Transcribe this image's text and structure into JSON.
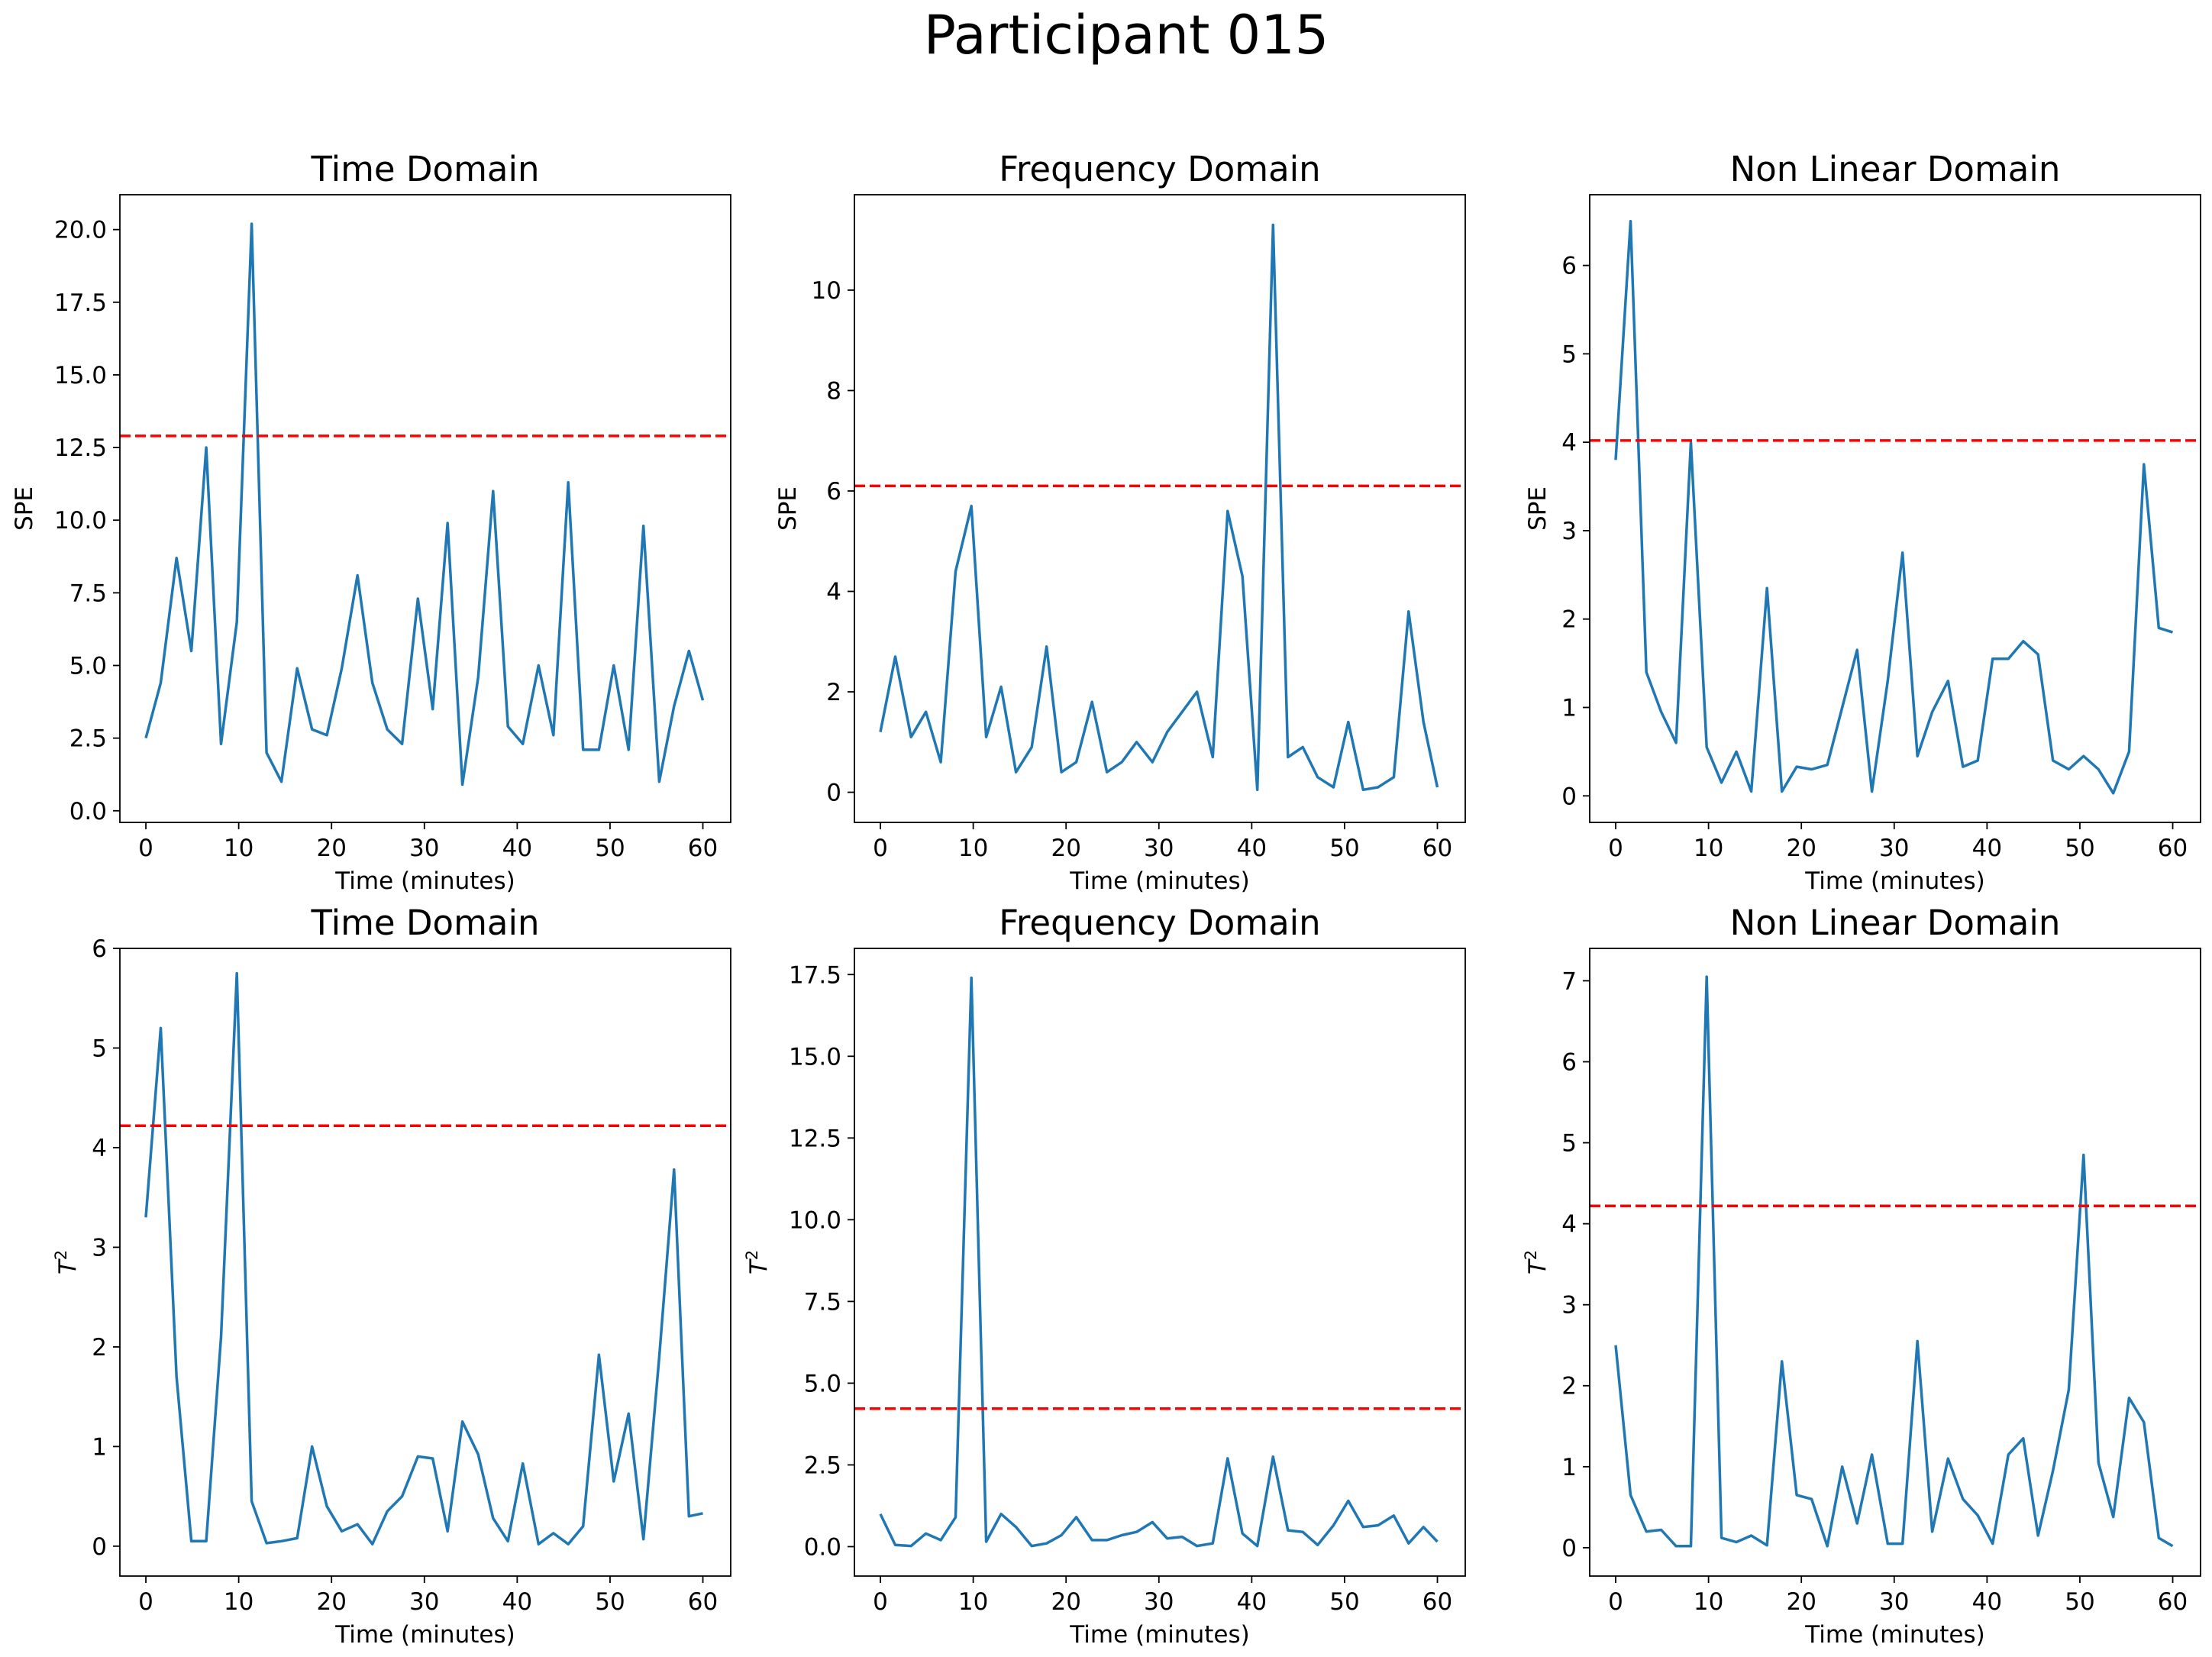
{
  "figure_title": "Participant 015",
  "colors": {
    "line": "#1f77b4",
    "threshold": "#ff0000",
    "axis": "#000000"
  },
  "chart_data": [
    {
      "type": "line",
      "title": "Time Domain",
      "xlabel": "Time (minutes)",
      "ylabel": "SPE",
      "xlim": [
        -2.8,
        63
      ],
      "ylim": [
        -0.4,
        21.2
      ],
      "xticks": [
        0,
        10,
        20,
        30,
        40,
        50,
        60
      ],
      "xtick_labels": [
        "0",
        "10",
        "20",
        "30",
        "40",
        "50",
        "60"
      ],
      "yticks": [
        0,
        2.5,
        5,
        7.5,
        10,
        12.5,
        15,
        17.5,
        20
      ],
      "ytick_labels": [
        "0.0",
        "2.5",
        "5.0",
        "7.5",
        "10.0",
        "12.5",
        "15.0",
        "17.5",
        "20.0"
      ],
      "threshold": 12.9,
      "x": [
        0,
        1.6,
        3.3,
        4.9,
        6.5,
        8.1,
        9.8,
        11.4,
        13,
        14.6,
        16.3,
        17.9,
        19.5,
        21.1,
        22.8,
        24.4,
        26,
        27.6,
        29.3,
        30.9,
        32.5,
        34.1,
        35.8,
        37.4,
        39,
        40.6,
        42.3,
        43.9,
        45.5,
        47.1,
        48.8,
        50.4,
        52,
        53.6,
        55.3,
        56.9,
        58.5,
        60
      ],
      "values": [
        2.5,
        4.4,
        8.7,
        5.5,
        12.5,
        2.3,
        6.5,
        20.2,
        2.0,
        1.0,
        4.9,
        2.8,
        2.6,
        4.9,
        8.1,
        4.4,
        2.8,
        2.3,
        7.3,
        3.5,
        9.9,
        0.9,
        4.6,
        11.0,
        2.9,
        2.3,
        5.0,
        2.6,
        11.3,
        2.1,
        2.1,
        5.0,
        2.1,
        9.8,
        1.0,
        3.6,
        5.5,
        3.8
      ]
    },
    {
      "type": "line",
      "title": "Frequency Domain",
      "xlabel": "Time (minutes)",
      "ylabel": "SPE",
      "xlim": [
        -2.8,
        63
      ],
      "ylim": [
        -0.6,
        11.9
      ],
      "xticks": [
        0,
        10,
        20,
        30,
        40,
        50,
        60
      ],
      "xtick_labels": [
        "0",
        "10",
        "20",
        "30",
        "40",
        "50",
        "60"
      ],
      "yticks": [
        0,
        2,
        4,
        6,
        8,
        10
      ],
      "ytick_labels": [
        "0",
        "2",
        "4",
        "6",
        "8",
        "10"
      ],
      "threshold": 6.1,
      "x": [
        0,
        1.6,
        3.3,
        4.9,
        6.5,
        8.1,
        9.8,
        11.4,
        13,
        14.6,
        16.3,
        17.9,
        19.5,
        21.1,
        22.8,
        24.4,
        26,
        27.6,
        29.3,
        30.9,
        32.5,
        34.1,
        35.8,
        37.4,
        39,
        40.6,
        42.3,
        43.9,
        45.5,
        47.1,
        48.8,
        50.4,
        52,
        53.6,
        55.3,
        56.9,
        58.5,
        60
      ],
      "values": [
        1.2,
        2.7,
        1.1,
        1.6,
        0.6,
        4.4,
        5.7,
        1.1,
        2.1,
        0.4,
        0.9,
        2.9,
        0.4,
        0.6,
        1.8,
        0.4,
        0.6,
        1.0,
        0.6,
        1.2,
        1.6,
        2.0,
        0.7,
        5.6,
        4.3,
        0.05,
        11.3,
        0.7,
        0.9,
        0.3,
        0.1,
        1.4,
        0.05,
        0.1,
        0.3,
        3.6,
        1.4,
        0.1
      ]
    },
    {
      "type": "line",
      "title": "Non Linear Domain",
      "xlabel": "Time (minutes)",
      "ylabel": "SPE",
      "xlim": [
        -2.8,
        63
      ],
      "ylim": [
        -0.3,
        6.8
      ],
      "xticks": [
        0,
        10,
        20,
        30,
        40,
        50,
        60
      ],
      "xtick_labels": [
        "0",
        "10",
        "20",
        "30",
        "40",
        "50",
        "60"
      ],
      "yticks": [
        0,
        1,
        2,
        3,
        4,
        5,
        6
      ],
      "ytick_labels": [
        "0",
        "1",
        "2",
        "3",
        "4",
        "5",
        "6"
      ],
      "threshold": 4.02,
      "x": [
        0,
        1.6,
        3.3,
        4.9,
        6.5,
        8.1,
        9.8,
        11.4,
        13,
        14.6,
        16.3,
        17.9,
        19.5,
        21.1,
        22.8,
        24.4,
        26,
        27.6,
        29.3,
        30.9,
        32.5,
        34.1,
        35.8,
        37.4,
        39,
        40.6,
        42.3,
        43.9,
        45.5,
        47.1,
        48.8,
        50.4,
        52,
        53.6,
        55.3,
        56.9,
        58.5,
        60
      ],
      "values": [
        3.8,
        6.5,
        1.4,
        0.95,
        0.6,
        4.0,
        0.55,
        0.15,
        0.5,
        0.05,
        2.35,
        0.05,
        0.33,
        0.3,
        0.35,
        1.0,
        1.65,
        0.05,
        1.3,
        2.75,
        0.45,
        0.95,
        1.3,
        0.33,
        0.4,
        1.55,
        1.55,
        1.75,
        1.6,
        0.4,
        0.3,
        0.45,
        0.3,
        0.03,
        0.5,
        3.75,
        1.9,
        1.85
      ]
    },
    {
      "type": "line",
      "title": "Time Domain",
      "xlabel": "Time (minutes)",
      "ylabel": "T²",
      "ylabel_main": "T",
      "ylabel_sup": "2",
      "xlim": [
        -2.8,
        63
      ],
      "ylim": [
        -0.3,
        6.0
      ],
      "xticks": [
        0,
        10,
        20,
        30,
        40,
        50,
        60
      ],
      "xtick_labels": [
        "0",
        "10",
        "20",
        "30",
        "40",
        "50",
        "60"
      ],
      "yticks": [
        0,
        1,
        2,
        3,
        4,
        5,
        6
      ],
      "ytick_labels": [
        "0",
        "1",
        "2",
        "3",
        "4",
        "5",
        "6"
      ],
      "threshold": 4.22,
      "x": [
        0,
        1.6,
        3.3,
        4.9,
        6.5,
        8.1,
        9.8,
        11.4,
        13,
        14.6,
        16.3,
        17.9,
        19.5,
        21.1,
        22.8,
        24.4,
        26,
        27.6,
        29.3,
        30.9,
        32.5,
        34.1,
        35.8,
        37.4,
        39,
        40.6,
        42.3,
        43.9,
        45.5,
        47.1,
        48.8,
        50.4,
        52,
        53.6,
        55.3,
        56.9,
        58.5,
        60
      ],
      "values": [
        3.3,
        5.2,
        1.7,
        0.05,
        0.05,
        2.1,
        5.75,
        0.45,
        0.03,
        0.05,
        0.08,
        1.0,
        0.4,
        0.15,
        0.22,
        0.02,
        0.35,
        0.5,
        0.9,
        0.88,
        0.15,
        1.25,
        0.92,
        0.28,
        0.05,
        0.83,
        0.02,
        0.13,
        0.02,
        0.2,
        1.92,
        0.65,
        1.33,
        0.07,
        1.9,
        3.78,
        0.3,
        0.33
      ]
    },
    {
      "type": "line",
      "title": "Frequency Domain",
      "xlabel": "Time (minutes)",
      "ylabel": "T²",
      "ylabel_main": "T",
      "ylabel_sup": "2",
      "xlim": [
        -2.8,
        63
      ],
      "ylim": [
        -0.9,
        18.3
      ],
      "xticks": [
        0,
        10,
        20,
        30,
        40,
        50,
        60
      ],
      "xtick_labels": [
        "0",
        "10",
        "20",
        "30",
        "40",
        "50",
        "60"
      ],
      "yticks": [
        0,
        2.5,
        5,
        7.5,
        10,
        12.5,
        15,
        17.5
      ],
      "ytick_labels": [
        "0.0",
        "2.5",
        "5.0",
        "7.5",
        "10.0",
        "12.5",
        "15.0",
        "17.5"
      ],
      "threshold": 4.22,
      "x": [
        0,
        1.6,
        3.3,
        4.9,
        6.5,
        8.1,
        9.8,
        11.4,
        13,
        14.6,
        16.3,
        17.9,
        19.5,
        21.1,
        22.8,
        24.4,
        26,
        27.6,
        29.3,
        30.9,
        32.5,
        34.1,
        35.8,
        37.4,
        39,
        40.6,
        42.3,
        43.9,
        45.5,
        47.1,
        48.8,
        50.4,
        52,
        53.6,
        55.3,
        56.9,
        58.5,
        60
      ],
      "values": [
        1.0,
        0.05,
        0.02,
        0.4,
        0.2,
        0.9,
        17.4,
        0.15,
        1.0,
        0.6,
        0.02,
        0.1,
        0.35,
        0.9,
        0.2,
        0.2,
        0.35,
        0.45,
        0.75,
        0.25,
        0.3,
        0.02,
        0.1,
        2.7,
        0.4,
        0.02,
        2.75,
        0.5,
        0.45,
        0.05,
        0.65,
        1.4,
        0.6,
        0.65,
        0.95,
        0.1,
        0.6,
        0.15
      ]
    },
    {
      "type": "line",
      "title": "Non Linear Domain",
      "xlabel": "Time (minutes)",
      "ylabel": "T²",
      "ylabel_main": "T",
      "ylabel_sup": "2",
      "xlim": [
        -2.8,
        63
      ],
      "ylim": [
        -0.35,
        7.4
      ],
      "xticks": [
        0,
        10,
        20,
        30,
        40,
        50,
        60
      ],
      "xtick_labels": [
        "0",
        "10",
        "20",
        "30",
        "40",
        "50",
        "60"
      ],
      "yticks": [
        0,
        1,
        2,
        3,
        4,
        5,
        6,
        7
      ],
      "ytick_labels": [
        "0",
        "1",
        "2",
        "3",
        "4",
        "5",
        "6",
        "7"
      ],
      "threshold": 4.22,
      "x": [
        0,
        1.6,
        3.3,
        4.9,
        6.5,
        8.1,
        9.8,
        11.4,
        13,
        14.6,
        16.3,
        17.9,
        19.5,
        21.1,
        22.8,
        24.4,
        26,
        27.6,
        29.3,
        30.9,
        32.5,
        34.1,
        35.8,
        37.4,
        39,
        40.6,
        42.3,
        43.9,
        45.5,
        47.1,
        48.8,
        50.4,
        52,
        53.6,
        55.3,
        56.9,
        58.5,
        60
      ],
      "values": [
        2.5,
        0.65,
        0.2,
        0.22,
        0.02,
        0.02,
        7.05,
        0.12,
        0.07,
        0.15,
        0.03,
        2.3,
        0.65,
        0.6,
        0.02,
        1.0,
        0.3,
        1.15,
        0.05,
        0.05,
        2.55,
        0.2,
        1.1,
        0.6,
        0.4,
        0.05,
        1.15,
        1.35,
        0.15,
        0.95,
        1.95,
        4.85,
        1.05,
        0.38,
        1.85,
        1.55,
        0.12,
        0.02
      ]
    }
  ]
}
